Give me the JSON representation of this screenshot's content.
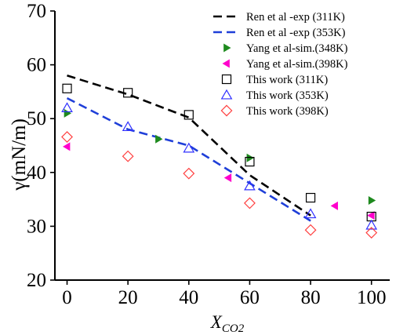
{
  "chart_data": {
    "type": "scatter",
    "ylabel": "γ(mN/m)",
    "xlabel_main": "X",
    "xlabel_sub": "CO2",
    "xlim": [
      -4,
      106
    ],
    "ylim": [
      20,
      70
    ],
    "xticks": [
      0,
      20,
      40,
      60,
      80,
      100
    ],
    "yticks": [
      20,
      30,
      40,
      50,
      60,
      70
    ],
    "legend_position": "top-right",
    "series": [
      {
        "name": "Ren et al -exp (311K)",
        "kind": "line",
        "color": "#000000",
        "x": [
          0,
          20,
          40,
          60,
          80
        ],
        "y": [
          58,
          54.5,
          50.2,
          39.5,
          32
        ]
      },
      {
        "name": "Ren et al -exp (353K)",
        "kind": "line",
        "color": "#1f3fd8",
        "x": [
          0,
          20,
          40,
          60,
          80
        ],
        "y": [
          53.8,
          48,
          45,
          38,
          31
        ]
      },
      {
        "name": "Yang et al-sim.(348K)",
        "kind": "marker",
        "marker": "triangle-right",
        "color": "#1e8a1e",
        "x": [
          0,
          30,
          60,
          100
        ],
        "y": [
          51,
          46.2,
          42.7,
          34.8
        ]
      },
      {
        "name": "Yang et al-sim.(398K)",
        "kind": "marker",
        "marker": "triangle-left",
        "color": "#ff00cc",
        "x": [
          0,
          53,
          88,
          100
        ],
        "y": [
          44.8,
          39,
          33.8,
          32
        ]
      },
      {
        "name": "This work (311K)",
        "kind": "marker",
        "marker": "square",
        "color": "#000000",
        "x": [
          0,
          20,
          40,
          60,
          80,
          100
        ],
        "y": [
          55.6,
          54.8,
          50.7,
          42,
          35.3,
          31.8
        ]
      },
      {
        "name": "This work (353K)",
        "kind": "marker",
        "marker": "triangle-up",
        "color": "#3030ff",
        "x": [
          0,
          20,
          40,
          60,
          80,
          100
        ],
        "y": [
          52,
          48.5,
          44.5,
          37.5,
          32.3,
          30.2
        ]
      },
      {
        "name": "This work (398K)",
        "kind": "marker",
        "marker": "diamond",
        "color": "#ff4040",
        "x": [
          0,
          20,
          40,
          60,
          80,
          100
        ],
        "y": [
          46.6,
          43,
          39.8,
          34.3,
          29.3,
          28.8
        ]
      }
    ]
  }
}
